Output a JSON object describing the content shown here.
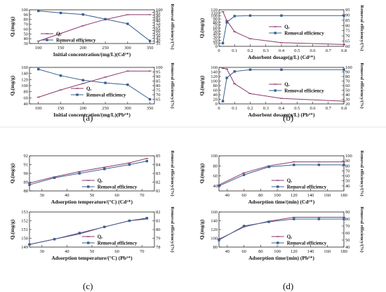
{
  "figure": {
    "panel_labels": [
      "(a)",
      "(b)",
      "(c)",
      "(d)"
    ]
  },
  "colors": {
    "qe": "#8b3a6b",
    "removal": "#3a5f8f"
  },
  "chart_data": [
    {
      "type": "line",
      "panel": "(a)",
      "xlabel": "Initial concentration/(mg/L)(Cd²⁺)",
      "ylabel_left": "Qₑ(mg/g)",
      "ylabel_right": "Removal efficiency/(%)",
      "x": [
        100,
        150,
        200,
        250,
        300,
        350
      ],
      "xlim": [
        80,
        360
      ],
      "xticks": [
        100,
        150,
        200,
        250,
        300,
        350
      ],
      "ylim_left": [
        30,
        100
      ],
      "yticks_left": [
        30,
        40,
        50,
        60,
        70,
        80,
        90,
        100
      ],
      "ylim_right": [
        35,
        100
      ],
      "yticks_right": [
        35,
        40,
        45,
        50,
        55,
        60,
        65,
        70,
        75,
        80,
        85,
        90,
        95,
        100
      ],
      "legend_position": "lower-left",
      "series": [
        {
          "name": "Qₑ",
          "axis": "left",
          "values": [
            35,
            51,
            67,
            80,
            90,
            90
          ]
        },
        {
          "name": "Removal efficiency",
          "axis": "right",
          "values": [
            98,
            94,
            91,
            82,
            73,
            40
          ]
        }
      ]
    },
    {
      "type": "line",
      "panel": "(a)",
      "xlabel": "Initial concentration/(mg/L)(Pb²⁺)",
      "ylabel_left": "Qₑ(mg/g)",
      "ylabel_right": "Removal efficiency/(%)",
      "x": [
        100,
        150,
        200,
        250,
        300,
        350
      ],
      "xlim": [
        80,
        360
      ],
      "xticks": [
        100,
        150,
        200,
        250,
        300,
        350
      ],
      "ylim_left": [
        40,
        160
      ],
      "yticks_left": [
        40,
        60,
        80,
        100,
        120,
        140,
        160
      ],
      "ylim_right": [
        60,
        100
      ],
      "yticks_right": [
        65,
        70,
        75,
        80,
        85,
        90,
        95,
        100
      ],
      "legend_position": "center",
      "series": [
        {
          "name": "Qₑ",
          "axis": "left",
          "values": [
            62,
            86,
            107,
            128,
            148,
            148
          ]
        },
        {
          "name": "Removal efficiency",
          "axis": "right",
          "values": [
            98,
            91,
            86,
            83,
            81,
            65
          ]
        }
      ]
    },
    {
      "type": "line",
      "panel": "(b)",
      "xlabel": "Adsorbent dosage(g/L) (Cd²⁺)",
      "ylabel_left": "Qₑ(mg/g)",
      "ylabel_right": "Removal efficiency/(%)",
      "x": [
        0.025,
        0.05,
        0.1,
        0.2,
        0.4,
        0.8
      ],
      "xlim": [
        0.0,
        0.8
      ],
      "xticks": [
        0.0,
        0.1,
        0.2,
        0.3,
        0.4,
        0.5,
        0.6,
        0.7,
        0.8
      ],
      "ylim_left": [
        0,
        120
      ],
      "yticks_left": [
        0,
        10,
        20,
        30,
        40,
        50,
        60,
        70,
        80,
        90,
        100,
        110,
        120
      ],
      "ylim_right": [
        60,
        95
      ],
      "yticks_right": [
        60,
        65,
        70,
        75,
        80,
        85,
        90,
        95
      ],
      "legend_position": "center-right",
      "series": [
        {
          "name": "Qₑ",
          "axis": "left",
          "values": [
            114,
            85,
            48,
            25,
            12,
            6
          ]
        },
        {
          "name": "Removal efficiency",
          "axis": "right",
          "values": [
            63,
            83,
            89,
            89.5,
            89.5,
            89.5
          ]
        }
      ]
    },
    {
      "type": "line",
      "panel": "(b)",
      "xlabel": "Adsorbent dosage(g/L) (Pb²⁺)",
      "ylabel_left": "Qₑ(mg/g)",
      "ylabel_right": "Removal efficiency/(%)",
      "x": [
        0.025,
        0.05,
        0.1,
        0.2,
        0.4,
        0.8
      ],
      "xlim": [
        0.0,
        0.8
      ],
      "xticks": [
        0.0,
        0.1,
        0.2,
        0.3,
        0.4,
        0.5,
        0.6,
        0.7,
        0.8
      ],
      "ylim_left": [
        0,
        160
      ],
      "yticks_left": [
        0,
        20,
        40,
        60,
        80,
        100,
        120,
        140,
        160
      ],
      "ylim_right": [
        20,
        100
      ],
      "yticks_right": [
        20,
        30,
        40,
        50,
        60,
        70,
        80,
        90,
        100
      ],
      "legend_position": "center-right",
      "series": [
        {
          "name": "Qₑ",
          "axis": "left",
          "values": [
            156,
            153,
            88,
            45,
            24,
            12
          ]
        },
        {
          "name": "Removal efficiency",
          "axis": "right",
          "values": [
            26,
            77,
            91,
            95,
            95,
            95
          ]
        }
      ]
    },
    {
      "type": "line",
      "panel": "(c)",
      "xlabel": "Adsorption temperature/(°C) (Cd²⁺)",
      "ylabel_left": "Qₑ(mg/g)",
      "ylabel_right": "Removal efficiency/(%)",
      "x": [
        25,
        35,
        45,
        55,
        65,
        72
      ],
      "xlim": [
        25,
        75
      ],
      "xticks": [
        30,
        40,
        50,
        60,
        70
      ],
      "ylim_left": [
        88,
        92
      ],
      "yticks_left": [
        88,
        89,
        90,
        91,
        92
      ],
      "ylim_right": [
        81,
        85
      ],
      "yticks_right": [
        81,
        82,
        83,
        84,
        85
      ],
      "legend_position": "lower-right",
      "series": [
        {
          "name": "Qₑ",
          "axis": "left",
          "values": [
            88.9,
            89.6,
            90.2,
            90.7,
            91.2,
            91.7
          ]
        },
        {
          "name": "Removal efficiency",
          "axis": "right",
          "values": [
            81.7,
            82.5,
            83.0,
            83.5,
            84.0,
            84.4
          ]
        }
      ]
    },
    {
      "type": "line",
      "panel": "(c)",
      "xlabel": "Adsorption temperature/(°C) (Pb²⁺)",
      "ylabel_left": "Qₑ(mg/g)",
      "ylabel_right": "Removal efficiency/(%)",
      "x": [
        25,
        35,
        45,
        55,
        65,
        72
      ],
      "xlim": [
        25,
        75
      ],
      "xticks": [
        30,
        40,
        50,
        60,
        70
      ],
      "ylim_left": [
        149,
        153
      ],
      "yticks_left": [
        149,
        150,
        151,
        152,
        153
      ],
      "ylim_right": [
        78,
        82
      ],
      "yticks_right": [
        78,
        79,
        80,
        81,
        82
      ],
      "legend_position": "lower-right",
      "series": [
        {
          "name": "Qₑ",
          "axis": "left",
          "values": [
            149.3,
            149.9,
            150.5,
            151.3,
            152.0,
            152.2
          ]
        },
        {
          "name": "Removal efficiency",
          "axis": "right",
          "values": [
            78.3,
            78.9,
            79.6,
            80.3,
            81.0,
            81.3
          ]
        }
      ]
    },
    {
      "type": "line",
      "panel": "(d)",
      "xlabel": "Adsorption time/(min) (Cd²⁺)",
      "ylabel_left": "Qₑ(mg/g)",
      "ylabel_right": "Removal efficiency/(%)",
      "x": [
        30,
        60,
        90,
        120,
        150,
        180
      ],
      "xlim": [
        30,
        180
      ],
      "xticks": [
        40,
        60,
        80,
        100,
        120,
        140,
        160,
        180
      ],
      "ylim_left": [
        30,
        100
      ],
      "yticks_left": [
        40,
        60,
        80,
        100
      ],
      "ylim_right": [
        30,
        100
      ],
      "yticks_right": [
        40,
        50,
        60,
        70,
        80,
        90,
        100
      ],
      "legend_position": "lower-right",
      "series": [
        {
          "name": "Qₑ",
          "axis": "left",
          "values": [
            42,
            66,
            80,
            88,
            88,
            88
          ]
        },
        {
          "name": "Removal efficiency",
          "axis": "right",
          "values": [
            40,
            62,
            78,
            82,
            82,
            82
          ]
        }
      ]
    },
    {
      "type": "line",
      "panel": "(d)",
      "xlabel": "Adsorption time/(min) (Pb²⁺)",
      "ylabel_left": "Qₑ(mg/g)",
      "ylabel_right": "Removal efficiency/(%)",
      "x": [
        30,
        60,
        90,
        120,
        150,
        180
      ],
      "xlim": [
        30,
        180
      ],
      "xticks": [
        40,
        60,
        80,
        100,
        120,
        140,
        160,
        180
      ],
      "ylim_left": [
        80,
        160
      ],
      "yticks_left": [
        80,
        100,
        120,
        140,
        160
      ],
      "ylim_right": [
        40,
        90
      ],
      "yticks_right": [
        40,
        50,
        60,
        70,
        80,
        90
      ],
      "legend_position": "lower-right",
      "series": [
        {
          "name": "Qₑ",
          "axis": "left",
          "values": [
            98,
            126,
            139,
            148,
            148,
            148
          ]
        },
        {
          "name": "Removal efficiency",
          "axis": "right",
          "values": [
            50,
            70,
            76,
            80,
            80,
            80
          ]
        }
      ]
    }
  ]
}
